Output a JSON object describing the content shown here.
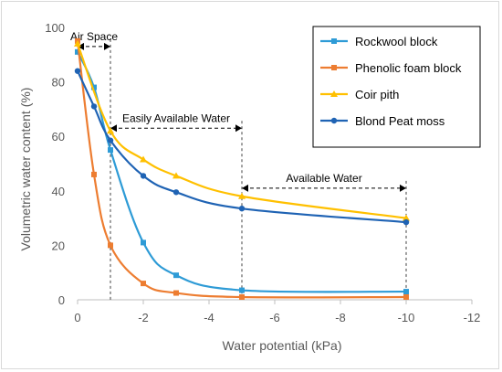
{
  "chart_data": {
    "type": "line",
    "xlabel": "Water potential (kPa)",
    "ylabel": "Volumetric water content (%)",
    "xlim": [
      0,
      -12
    ],
    "ylim": [
      0,
      100
    ],
    "x_ticks": [
      0,
      -2,
      -4,
      -6,
      -8,
      -10,
      -12
    ],
    "y_ticks": [
      0,
      20,
      40,
      60,
      80,
      100
    ],
    "x_tick_labels": [
      "0",
      "-2",
      "-4",
      "-6",
      "-8",
      "-10",
      "-12"
    ],
    "y_tick_labels": [
      "0",
      "20",
      "40",
      "60",
      "80",
      "100"
    ],
    "grid": false,
    "legend_position": "top-right",
    "series": [
      {
        "name": "Rockwool block",
        "color": "#2e9bd6",
        "marker": "square",
        "x": [
          0,
          -0.5,
          -1,
          -2,
          -3,
          -5,
          -10
        ],
        "y": [
          91,
          78,
          55,
          21,
          9,
          3.5,
          3
        ]
      },
      {
        "name": "Phenolic foam block",
        "color": "#ed7d31",
        "marker": "square",
        "x": [
          0,
          -0.5,
          -1,
          -2,
          -3,
          -5,
          -10
        ],
        "y": [
          95,
          46,
          20,
          6,
          2.5,
          1,
          1
        ]
      },
      {
        "name": "Coir pith",
        "color": "#ffc000",
        "marker": "triangle",
        "x": [
          0,
          -1,
          -2,
          -3,
          -5,
          -10
        ],
        "y": [
          94,
          62,
          51.5,
          45.5,
          38,
          30
        ]
      },
      {
        "name": "Blond Peat moss",
        "color": "#1f63b4",
        "marker": "circle",
        "x": [
          0,
          -0.5,
          -1,
          -2,
          -3,
          -5,
          -10
        ],
        "y": [
          84,
          71,
          58.5,
          45.5,
          39.5,
          33.5,
          28.5
        ]
      }
    ],
    "annotations": [
      {
        "label": "Air Space",
        "x_from": 0,
        "x_to": -1,
        "y": 93
      },
      {
        "label": "Easily Available Water",
        "x_from": -1,
        "x_to": -5,
        "y": 63
      },
      {
        "label": "Available Water",
        "x_from": -5,
        "x_to": -10,
        "y": 41
      }
    ],
    "guide_lines": [
      {
        "x": -1,
        "y_top": 93
      },
      {
        "x": -5,
        "y_top": 63
      },
      {
        "x": -10,
        "y_top": 41
      }
    ]
  }
}
